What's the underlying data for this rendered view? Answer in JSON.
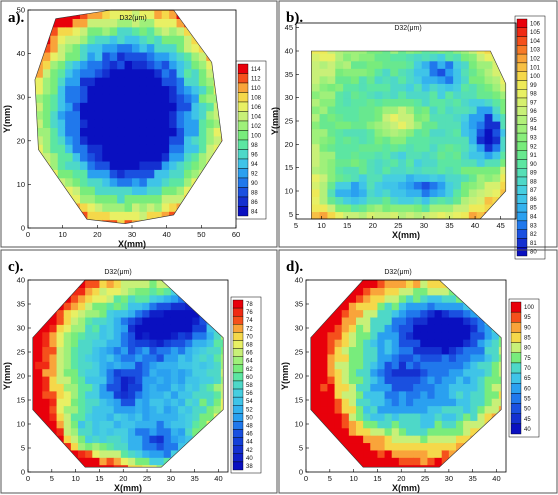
{
  "chart_data": [
    {
      "type": "heatmap",
      "panel": "a).",
      "title": "D32(μm)",
      "xlabel": "X(mm)",
      "ylabel": "Y(mm)",
      "xlim": [
        0,
        60
      ],
      "ylim": [
        0,
        50
      ],
      "xticks": [
        0,
        10,
        20,
        30,
        40,
        50,
        60
      ],
      "yticks": [
        0,
        10,
        20,
        30,
        40,
        50
      ],
      "legend": [
        114,
        112,
        110,
        108,
        106,
        104,
        102,
        100,
        98,
        96,
        94,
        92,
        90,
        88,
        86,
        84
      ],
      "legend_colors": [
        "#e8000b",
        "#f5501c",
        "#f9a43a",
        "#f5d84a",
        "#e8f064",
        "#c8f078",
        "#9ff07a",
        "#78ec7c",
        "#5ce6a2",
        "#4ed8c8",
        "#3fc4e8",
        "#2aa0f0",
        "#2078ec",
        "#1a50e0",
        "#1430d0",
        "#0a10c0"
      ],
      "value_range": [
        84,
        114
      ],
      "center": [
        29,
        26
      ],
      "outline": [
        [
          8,
          48
        ],
        [
          24,
          50
        ],
        [
          42,
          50
        ],
        [
          53,
          38
        ],
        [
          56,
          20
        ],
        [
          42,
          3
        ],
        [
          28,
          1
        ],
        [
          17,
          2
        ],
        [
          3,
          18
        ],
        [
          2,
          34
        ]
      ],
      "blobs": [
        [
          29,
          26,
          20,
          18,
          0.5
        ],
        [
          30,
          22,
          6,
          5,
          0.45
        ],
        [
          28,
          28,
          4,
          4,
          -0.2
        ]
      ],
      "edge_warm": 0.6
    },
    {
      "type": "heatmap",
      "panel": "b).",
      "title": "D32(μm)",
      "xlabel": "X(mm)",
      "ylabel": "Y(mm)",
      "xlim": [
        5,
        48
      ],
      "ylim": [
        4,
        46
      ],
      "xticks": [
        5,
        10,
        15,
        20,
        25,
        30,
        35,
        40,
        45
      ],
      "yticks": [
        5,
        10,
        15,
        20,
        25,
        30,
        35,
        40,
        45
      ],
      "legend": [
        106,
        105,
        104,
        103,
        102,
        101,
        100,
        99,
        98,
        97,
        96,
        95,
        94,
        93,
        92,
        91,
        90,
        89,
        88,
        87,
        86,
        85,
        84,
        83,
        82,
        81,
        80
      ],
      "legend_colors": [
        "#e8000b",
        "#f02a14",
        "#f5501c",
        "#f77a28",
        "#f9a43a",
        "#f7c044",
        "#f5d84a",
        "#eeea58",
        "#e8f064",
        "#d6f06e",
        "#c8f078",
        "#b2f07a",
        "#9ff07a",
        "#88ee7b",
        "#78ec7c",
        "#68e88f",
        "#5ce6a2",
        "#55dfb6",
        "#4ed8c8",
        "#46cee0",
        "#3fc4e8",
        "#34b2ee",
        "#2aa0f0",
        "#2078ec",
        "#1a50e0",
        "#1430d0",
        "#0a10c0"
      ],
      "value_range": [
        80,
        106
      ],
      "center": [
        26,
        25
      ],
      "outline": [
        [
          8,
          40
        ],
        [
          43,
          40
        ],
        [
          46,
          33
        ],
        [
          46,
          10
        ],
        [
          41,
          4
        ],
        [
          8,
          4
        ]
      ],
      "blobs": [
        [
          25,
          25,
          5,
          4,
          -0.35
        ],
        [
          43,
          22,
          4,
          7,
          0.55
        ],
        [
          15,
          9,
          5,
          4,
          0.4
        ],
        [
          30,
          10,
          8,
          4,
          0.35
        ],
        [
          34,
          36,
          6,
          4,
          0.3
        ]
      ],
      "edge_warm": 0.35
    },
    {
      "type": "heatmap",
      "panel": "c).",
      "title": "D32(μm)",
      "xlabel": "X(mm)",
      "ylabel": "Y(mm)",
      "xlim": [
        0,
        42
      ],
      "ylim": [
        0,
        40
      ],
      "xticks": [
        0,
        5,
        10,
        15,
        20,
        25,
        30,
        35,
        40
      ],
      "yticks": [
        0,
        5,
        10,
        15,
        20,
        25,
        30,
        35,
        40
      ],
      "legend": [
        78,
        76,
        74,
        72,
        70,
        68,
        66,
        64,
        62,
        60,
        58,
        56,
        54,
        52,
        50,
        48,
        46,
        44,
        42,
        40,
        38
      ],
      "legend_colors": [
        "#e8000b",
        "#f02a14",
        "#f5501c",
        "#f9a43a",
        "#f5d84a",
        "#e8f064",
        "#c8f078",
        "#9ff07a",
        "#78ec7c",
        "#5ce6a2",
        "#4ed8c8",
        "#46cee0",
        "#3fc4e8",
        "#34b2ee",
        "#2aa0f0",
        "#2078ec",
        "#1a50e0",
        "#1440d8",
        "#1430d0",
        "#0f20c8",
        "#0a10c0"
      ],
      "value_range": [
        38,
        78
      ],
      "center": [
        25,
        22
      ],
      "outline": [
        [
          12,
          40
        ],
        [
          28,
          40
        ],
        [
          41,
          28
        ],
        [
          41,
          13
        ],
        [
          28,
          1
        ],
        [
          12,
          1
        ],
        [
          1,
          13
        ],
        [
          1,
          28
        ]
      ],
      "blobs": [
        [
          34,
          33,
          7,
          5,
          0.5
        ],
        [
          26,
          30,
          6,
          4,
          0.35
        ],
        [
          28,
          5,
          8,
          5,
          0.5
        ],
        [
          12,
          8,
          6,
          5,
          0.3
        ],
        [
          20,
          18,
          4,
          4,
          0.25
        ]
      ],
      "edge_warm": 0.55
    },
    {
      "type": "heatmap",
      "panel": "d).",
      "title": "D32(μm)",
      "xlabel": "X(mm)",
      "ylabel": "Y(mm)",
      "xlim": [
        0,
        42
      ],
      "ylim": [
        0,
        40
      ],
      "xticks": [
        0,
        5,
        10,
        15,
        20,
        25,
        30,
        35,
        40
      ],
      "yticks": [
        0,
        5,
        10,
        15,
        20,
        25,
        30,
        35,
        40
      ],
      "legend": [
        100,
        95,
        90,
        85,
        80,
        75,
        70,
        65,
        60,
        55,
        50,
        45,
        40
      ],
      "legend_colors": [
        "#e8000b",
        "#f5501c",
        "#f9a43a",
        "#f5d84a",
        "#c8f078",
        "#78ec7c",
        "#4ed8c8",
        "#3fc4e8",
        "#2aa0f0",
        "#2078ec",
        "#1a50e0",
        "#1430d0",
        "#0a10c0"
      ],
      "value_range": [
        40,
        100
      ],
      "center": [
        25,
        22
      ],
      "outline": [
        [
          12,
          40
        ],
        [
          28,
          40
        ],
        [
          41,
          28
        ],
        [
          41,
          13
        ],
        [
          28,
          1
        ],
        [
          12,
          1
        ],
        [
          1,
          13
        ],
        [
          1,
          28
        ]
      ],
      "blobs": [
        [
          30,
          30,
          9,
          5,
          0.55
        ],
        [
          20,
          20,
          5,
          4,
          0.2
        ],
        [
          14,
          12,
          5,
          4,
          0.15
        ]
      ],
      "edge_warm": 0.6
    }
  ]
}
